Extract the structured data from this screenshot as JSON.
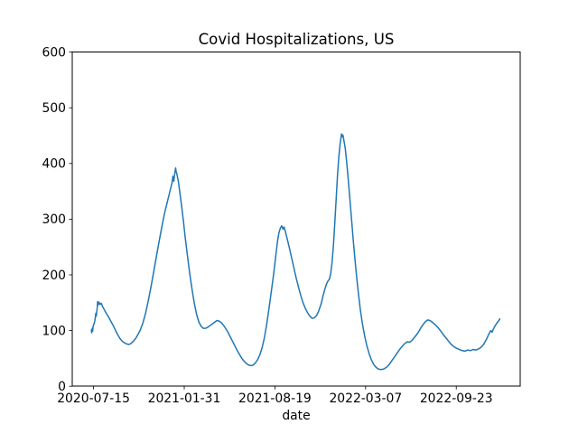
{
  "chart_data": {
    "type": "line",
    "title": "Covid Hospitalizations, US",
    "xlabel": "date",
    "ylabel": "",
    "ylim": [
      0,
      600
    ],
    "xlim": [
      "2020-05-29",
      "2023-02-11"
    ],
    "yticks": [
      0,
      100,
      200,
      300,
      400,
      500,
      600
    ],
    "xticks": [
      "2020-07-15",
      "2021-01-31",
      "2021-08-19",
      "2022-03-07",
      "2022-09-23"
    ],
    "grid": false,
    "legend": false,
    "line_color": "#1f77b4",
    "spine_color": "#000000",
    "background_color": "#ffffff",
    "series": [
      {
        "name": "US covid hospitalizations",
        "points": [
          [
            "2020-07-10",
            101
          ],
          [
            "2020-07-11",
            96
          ],
          [
            "2020-07-12",
            104
          ],
          [
            "2020-07-13",
            99
          ],
          [
            "2020-07-14",
            108
          ],
          [
            "2020-07-16",
            112
          ],
          [
            "2020-07-18",
            118
          ],
          [
            "2020-07-20",
            131
          ],
          [
            "2020-07-21",
            126
          ],
          [
            "2020-07-23",
            140
          ],
          [
            "2020-07-24",
            152
          ],
          [
            "2020-07-25",
            146
          ],
          [
            "2020-07-27",
            151
          ],
          [
            "2020-07-29",
            147
          ],
          [
            "2020-08-01",
            149
          ],
          [
            "2020-08-04",
            143
          ],
          [
            "2020-08-08",
            137
          ],
          [
            "2020-08-12",
            131
          ],
          [
            "2020-08-16",
            126
          ],
          [
            "2020-08-20",
            120
          ],
          [
            "2020-08-24",
            114
          ],
          [
            "2020-08-28",
            108
          ],
          [
            "2020-09-01",
            101
          ],
          [
            "2020-09-06",
            93
          ],
          [
            "2020-09-11",
            86
          ],
          [
            "2020-09-16",
            81
          ],
          [
            "2020-09-21",
            78
          ],
          [
            "2020-09-26",
            76
          ],
          [
            "2020-10-01",
            75
          ],
          [
            "2020-10-06",
            77
          ],
          [
            "2020-10-11",
            81
          ],
          [
            "2020-10-16",
            86
          ],
          [
            "2020-10-21",
            93
          ],
          [
            "2020-10-26",
            101
          ],
          [
            "2020-11-01",
            114
          ],
          [
            "2020-11-07",
            132
          ],
          [
            "2020-11-13",
            155
          ],
          [
            "2020-11-19",
            180
          ],
          [
            "2020-11-25",
            207
          ],
          [
            "2020-12-01",
            235
          ],
          [
            "2020-12-07",
            262
          ],
          [
            "2020-12-13",
            288
          ],
          [
            "2020-12-19",
            312
          ],
          [
            "2020-12-25",
            332
          ],
          [
            "2020-12-31",
            352
          ],
          [
            "2021-01-04",
            365
          ],
          [
            "2021-01-06",
            377
          ],
          [
            "2021-01-08",
            368
          ],
          [
            "2021-01-10",
            382
          ],
          [
            "2021-01-12",
            392
          ],
          [
            "2021-01-13",
            386
          ],
          [
            "2021-01-15",
            380
          ],
          [
            "2021-01-18",
            368
          ],
          [
            "2021-01-21",
            350
          ],
          [
            "2021-01-25",
            325
          ],
          [
            "2021-01-29",
            298
          ],
          [
            "2021-02-02",
            268
          ],
          [
            "2021-02-07",
            235
          ],
          [
            "2021-02-12",
            203
          ],
          [
            "2021-02-17",
            175
          ],
          [
            "2021-02-22",
            150
          ],
          [
            "2021-02-27",
            130
          ],
          [
            "2021-03-04",
            116
          ],
          [
            "2021-03-09",
            108
          ],
          [
            "2021-03-14",
            104
          ],
          [
            "2021-03-19",
            104
          ],
          [
            "2021-03-24",
            106
          ],
          [
            "2021-03-29",
            109
          ],
          [
            "2021-04-03",
            112
          ],
          [
            "2021-04-08",
            115
          ],
          [
            "2021-04-13",
            118
          ],
          [
            "2021-04-18",
            117
          ],
          [
            "2021-04-23",
            114
          ],
          [
            "2021-04-28",
            109
          ],
          [
            "2021-05-03",
            103
          ],
          [
            "2021-05-08",
            96
          ],
          [
            "2021-05-13",
            88
          ],
          [
            "2021-05-18",
            80
          ],
          [
            "2021-05-23",
            72
          ],
          [
            "2021-05-28",
            64
          ],
          [
            "2021-06-02",
            57
          ],
          [
            "2021-06-07",
            50
          ],
          [
            "2021-06-12",
            45
          ],
          [
            "2021-06-17",
            41
          ],
          [
            "2021-06-22",
            38
          ],
          [
            "2021-06-27",
            37
          ],
          [
            "2021-07-02",
            38
          ],
          [
            "2021-07-07",
            42
          ],
          [
            "2021-07-12",
            48
          ],
          [
            "2021-07-17",
            57
          ],
          [
            "2021-07-22",
            70
          ],
          [
            "2021-07-27",
            88
          ],
          [
            "2021-08-01",
            112
          ],
          [
            "2021-08-06",
            140
          ],
          [
            "2021-08-11",
            170
          ],
          [
            "2021-08-16",
            200
          ],
          [
            "2021-08-21",
            235
          ],
          [
            "2021-08-25",
            262
          ],
          [
            "2021-08-28",
            276
          ],
          [
            "2021-08-31",
            284
          ],
          [
            "2021-09-03",
            288
          ],
          [
            "2021-09-06",
            282
          ],
          [
            "2021-09-08",
            286
          ],
          [
            "2021-09-11",
            278
          ],
          [
            "2021-09-15",
            265
          ],
          [
            "2021-09-20",
            248
          ],
          [
            "2021-09-25",
            230
          ],
          [
            "2021-09-30",
            212
          ],
          [
            "2021-10-05",
            194
          ],
          [
            "2021-10-10",
            178
          ],
          [
            "2021-10-15",
            163
          ],
          [
            "2021-10-20",
            150
          ],
          [
            "2021-10-25",
            140
          ],
          [
            "2021-10-30",
            132
          ],
          [
            "2021-11-04",
            126
          ],
          [
            "2021-11-09",
            122
          ],
          [
            "2021-11-14",
            123
          ],
          [
            "2021-11-19",
            127
          ],
          [
            "2021-11-24",
            136
          ],
          [
            "2021-11-29",
            148
          ],
          [
            "2021-12-03",
            162
          ],
          [
            "2021-12-07",
            174
          ],
          [
            "2021-12-11",
            184
          ],
          [
            "2021-12-14",
            189
          ],
          [
            "2021-12-17",
            192
          ],
          [
            "2021-12-20",
            202
          ],
          [
            "2021-12-23",
            222
          ],
          [
            "2021-12-26",
            252
          ],
          [
            "2021-12-29",
            292
          ],
          [
            "2022-01-01",
            335
          ],
          [
            "2022-01-04",
            378
          ],
          [
            "2022-01-07",
            412
          ],
          [
            "2022-01-10",
            437
          ],
          [
            "2022-01-13",
            453
          ],
          [
            "2022-01-15",
            448
          ],
          [
            "2022-01-16",
            451
          ],
          [
            "2022-01-18",
            442
          ],
          [
            "2022-01-21",
            428
          ],
          [
            "2022-01-24",
            405
          ],
          [
            "2022-01-27",
            378
          ],
          [
            "2022-01-31",
            340
          ],
          [
            "2022-02-04",
            300
          ],
          [
            "2022-02-08",
            260
          ],
          [
            "2022-02-13",
            215
          ],
          [
            "2022-02-18",
            175
          ],
          [
            "2022-02-23",
            140
          ],
          [
            "2022-02-28",
            112
          ],
          [
            "2022-03-05",
            90
          ],
          [
            "2022-03-10",
            72
          ],
          [
            "2022-03-15",
            58
          ],
          [
            "2022-03-20",
            47
          ],
          [
            "2022-03-25",
            39
          ],
          [
            "2022-03-30",
            34
          ],
          [
            "2022-04-04",
            31
          ],
          [
            "2022-04-10",
            30
          ],
          [
            "2022-04-16",
            31
          ],
          [
            "2022-04-22",
            34
          ],
          [
            "2022-04-28",
            39
          ],
          [
            "2022-05-04",
            46
          ],
          [
            "2022-05-10",
            53
          ],
          [
            "2022-05-16",
            60
          ],
          [
            "2022-05-22",
            67
          ],
          [
            "2022-05-28",
            73
          ],
          [
            "2022-06-02",
            77
          ],
          [
            "2022-06-07",
            80
          ],
          [
            "2022-06-12",
            79
          ],
          [
            "2022-06-17",
            82
          ],
          [
            "2022-06-22",
            87
          ],
          [
            "2022-06-27",
            92
          ],
          [
            "2022-07-02",
            98
          ],
          [
            "2022-07-07",
            105
          ],
          [
            "2022-07-12",
            111
          ],
          [
            "2022-07-17",
            116
          ],
          [
            "2022-07-22",
            119
          ],
          [
            "2022-07-27",
            118
          ],
          [
            "2022-08-01",
            115
          ],
          [
            "2022-08-07",
            111
          ],
          [
            "2022-08-13",
            106
          ],
          [
            "2022-08-19",
            100
          ],
          [
            "2022-08-25",
            93
          ],
          [
            "2022-08-31",
            87
          ],
          [
            "2022-09-06",
            81
          ],
          [
            "2022-09-12",
            75
          ],
          [
            "2022-09-18",
            71
          ],
          [
            "2022-09-24",
            68
          ],
          [
            "2022-09-30",
            66
          ],
          [
            "2022-10-06",
            64
          ],
          [
            "2022-10-12",
            63
          ],
          [
            "2022-10-18",
            65
          ],
          [
            "2022-10-24",
            64
          ],
          [
            "2022-10-30",
            66
          ],
          [
            "2022-11-05",
            65
          ],
          [
            "2022-11-11",
            67
          ],
          [
            "2022-11-17",
            70
          ],
          [
            "2022-11-23",
            76
          ],
          [
            "2022-11-29",
            85
          ],
          [
            "2022-12-04",
            94
          ],
          [
            "2022-12-08",
            100
          ],
          [
            "2022-12-11",
            97
          ],
          [
            "2022-12-14",
            103
          ],
          [
            "2022-12-18",
            109
          ],
          [
            "2022-12-22",
            114
          ],
          [
            "2022-12-26",
            118
          ],
          [
            "2022-12-28",
            121
          ]
        ]
      }
    ]
  }
}
